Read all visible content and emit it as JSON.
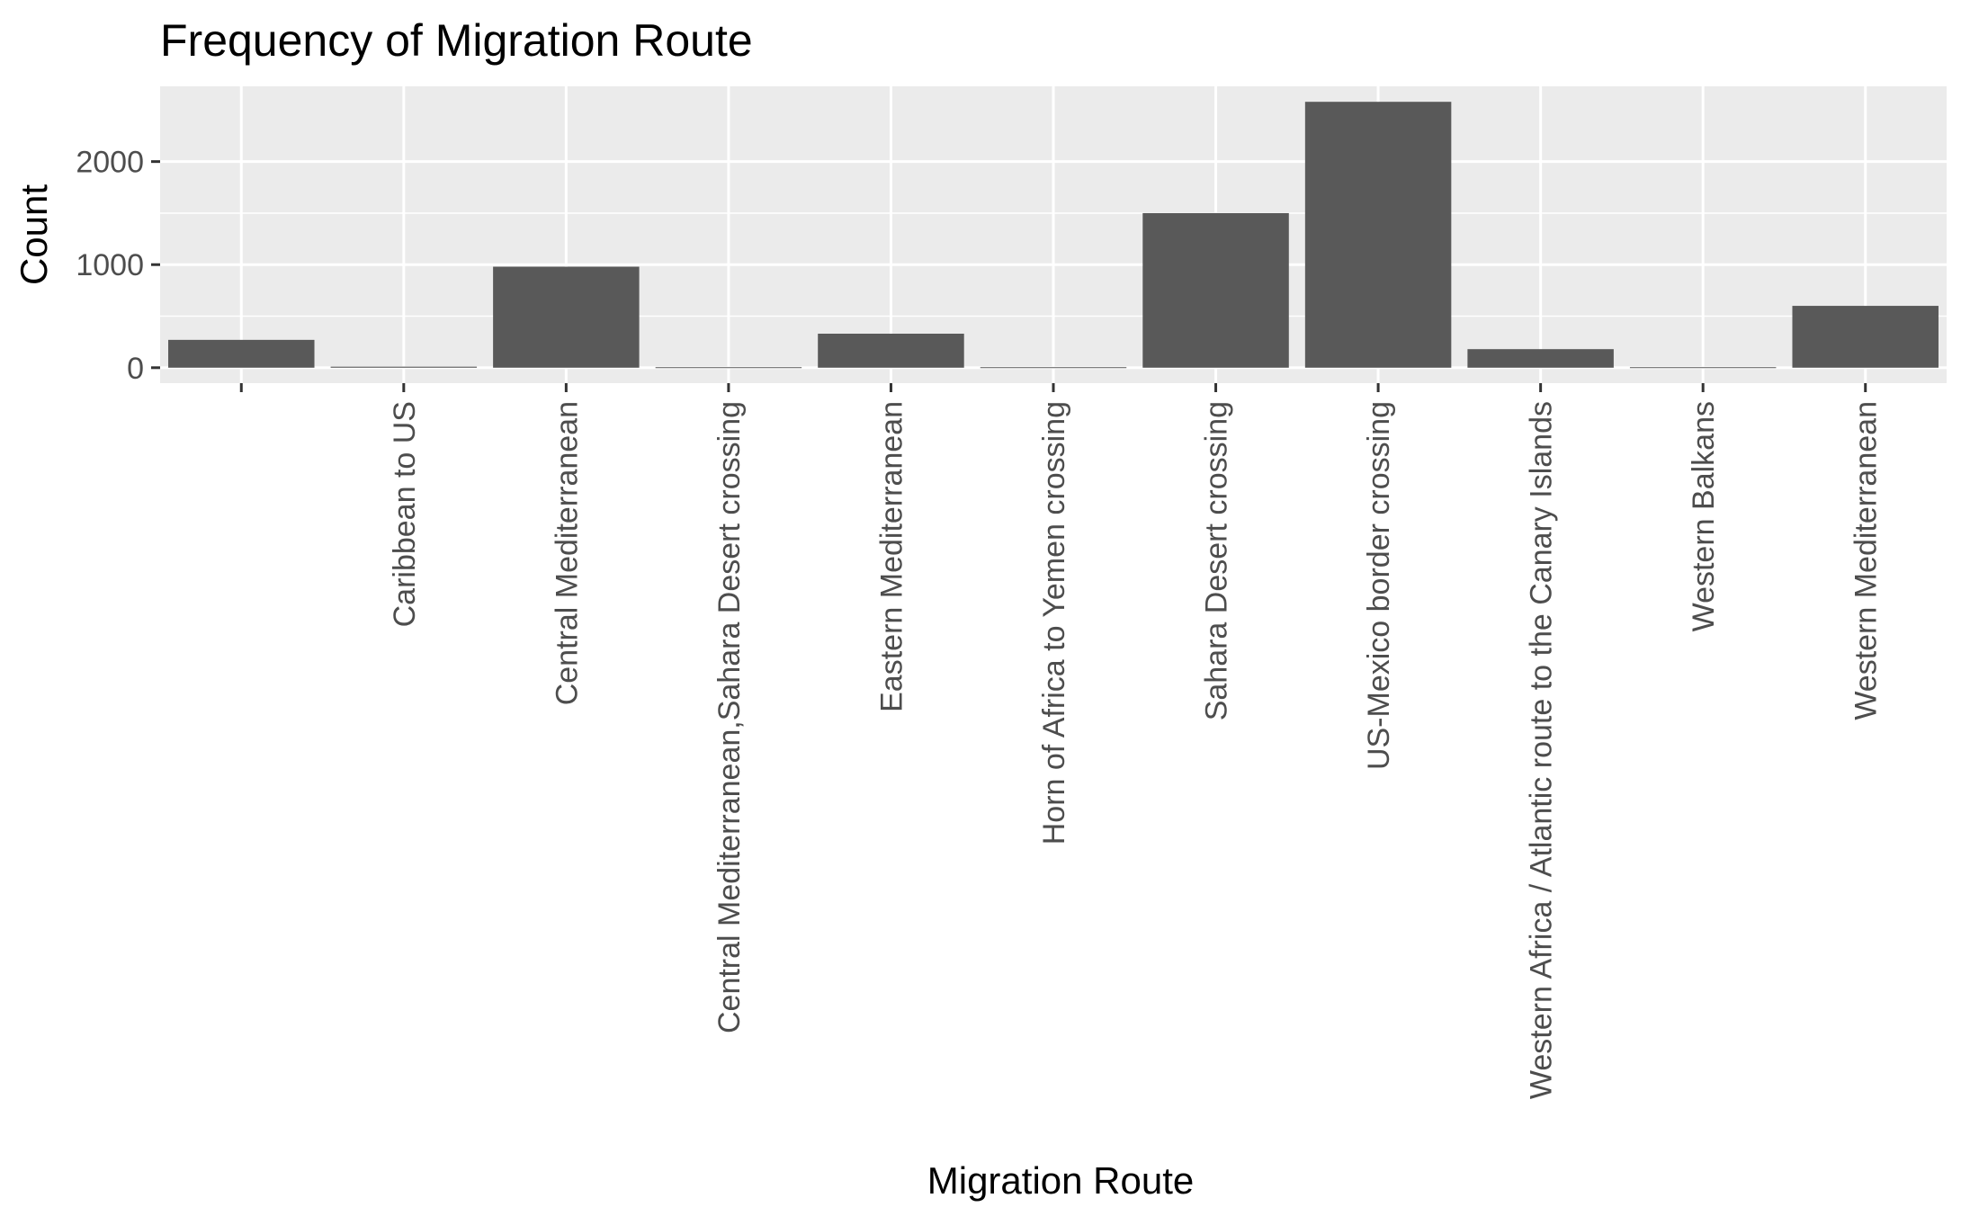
{
  "chart_data": {
    "type": "bar",
    "title": "Frequency of Migration Route",
    "xlabel": "Migration Route",
    "ylabel": "Count",
    "categories": [
      "",
      "Caribbean to US",
      "Central Mediterranean",
      "Central Mediterranean,Sahara Desert crossing",
      "Eastern Mediterranean",
      "Horn of Africa to Yemen crossing",
      "Sahara Desert crossing",
      "US-Mexico border crossing",
      "Western Africa / Atlantic route to the Canary Islands",
      "Western Balkans",
      "Western Mediterranean"
    ],
    "values": [
      270,
      10,
      980,
      5,
      330,
      5,
      1500,
      2580,
      180,
      5,
      600
    ],
    "ylim": [
      -150,
      2730
    ],
    "yticks": [
      0,
      1000,
      2000
    ],
    "grid": true,
    "legend": "none",
    "colors": {
      "bar": "#595959",
      "panel_background": "#EBEBEB",
      "grid_line": "#FFFFFF",
      "tick_label": "#4D4D4D",
      "tick_mark": "#333333",
      "text": "#000000"
    }
  }
}
